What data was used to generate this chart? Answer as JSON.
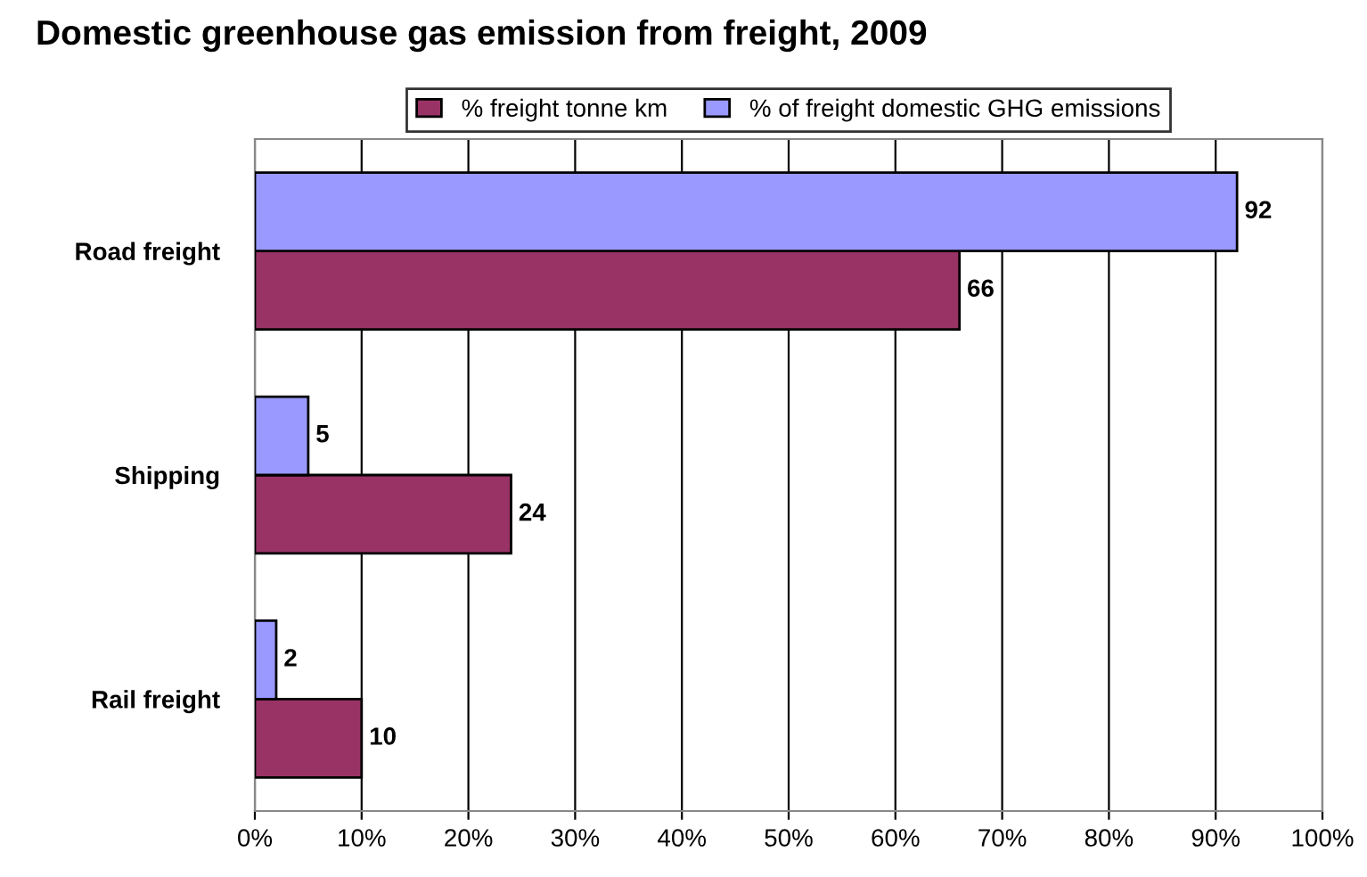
{
  "chart_data": {
    "type": "bar",
    "orientation": "horizontal",
    "title": "Domestic greenhouse gas emission from freight, 2009",
    "categories": [
      "Road freight",
      "Shipping",
      "Rail freight"
    ],
    "series": [
      {
        "name": "% freight tonne km",
        "color": "#993366",
        "values": [
          66,
          24,
          10
        ]
      },
      {
        "name": "% of freight domestic GHG emissions",
        "color": "#9999ff",
        "values": [
          92,
          5,
          2
        ]
      }
    ],
    "xlim": [
      0,
      100
    ],
    "xticks": [
      {
        "value": 0,
        "label": "0%"
      },
      {
        "value": 10,
        "label": "10%"
      },
      {
        "value": 20,
        "label": "20%"
      },
      {
        "value": 30,
        "label": "30%"
      },
      {
        "value": 40,
        "label": "40%"
      },
      {
        "value": 50,
        "label": "50%"
      },
      {
        "value": 60,
        "label": "60%"
      },
      {
        "value": 70,
        "label": "70%"
      },
      {
        "value": 80,
        "label": "80%"
      },
      {
        "value": 90,
        "label": "90%"
      },
      {
        "value": 100,
        "label": "100%"
      }
    ],
    "grid": "x",
    "legend": "top",
    "data_labels": true
  }
}
